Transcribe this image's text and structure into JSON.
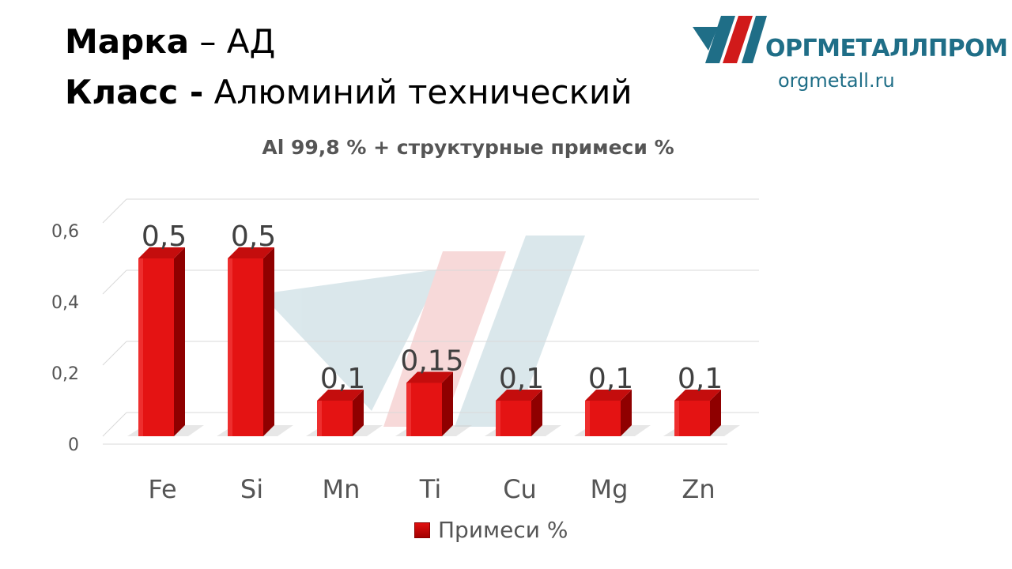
{
  "header": {
    "brand_label": "Марка",
    "brand_value": " – АД",
    "class_label": "Класс -",
    "class_value": " Алюминий технический"
  },
  "logo": {
    "name": "ОРГМЕТАЛЛПРОМ",
    "url": "orgmetall.ru",
    "colors": {
      "teal": "#1f6e87",
      "red": "#d11a1a"
    }
  },
  "chart_data": {
    "type": "bar",
    "title": "Al 99,8 % + структурные примеси %",
    "categories": [
      "Fe",
      "Si",
      "Mn",
      "Ti",
      "Cu",
      "Mg",
      "Zn"
    ],
    "series": [
      {
        "name": "Примеси %",
        "values": [
          0.5,
          0.5,
          0.1,
          0.15,
          0.1,
          0.1,
          0.1
        ],
        "labels": [
          "0,5",
          "0,5",
          "0,1",
          "0,15",
          "0,1",
          "0,1",
          "0,1"
        ],
        "color": "#e01010"
      }
    ],
    "y_ticks": [
      "0",
      "0,2",
      "0,4",
      "0,6"
    ],
    "ylim": [
      0,
      0.6
    ],
    "grid": true,
    "legend": "bottom",
    "style": "3d-column"
  }
}
